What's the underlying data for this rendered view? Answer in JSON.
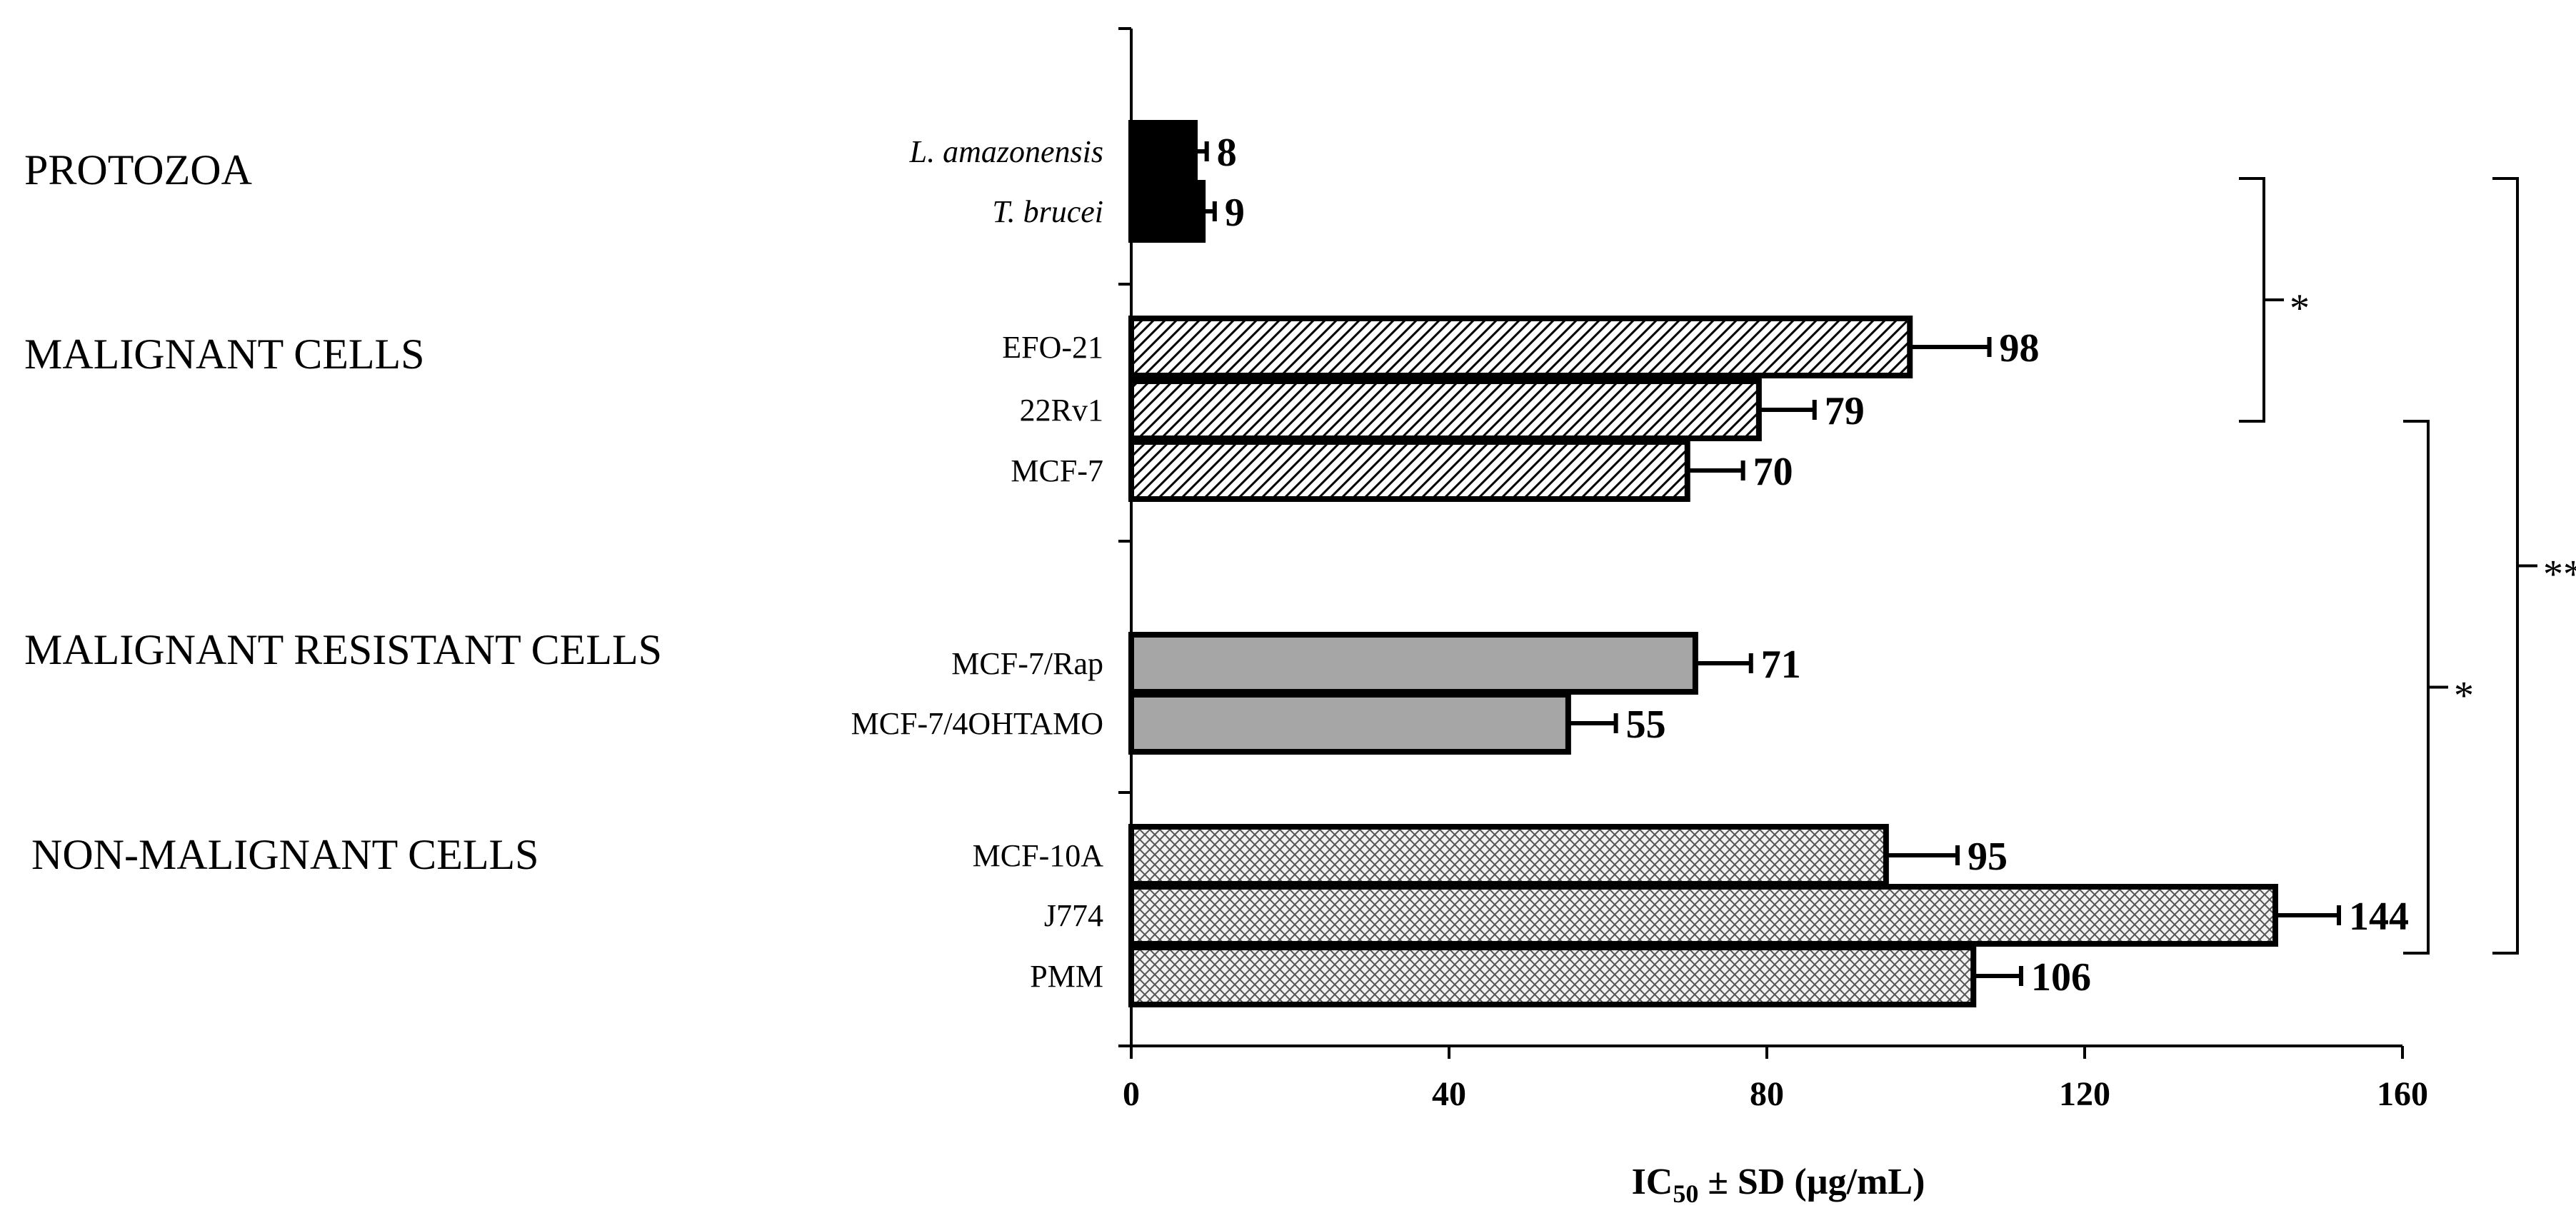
{
  "chart_data": {
    "type": "bar",
    "orientation": "horizontal",
    "title": "",
    "xlabel_main": "IC",
    "xlabel_sub": "50",
    "xlabel_rest": " ± SD (µg/mL)",
    "xlim": [
      0,
      160
    ],
    "xticks": [
      "0",
      "40",
      "80",
      "120",
      "160"
    ],
    "grid": false,
    "groups": [
      {
        "name": "PROTOZOA",
        "style": "solid",
        "items": [
          {
            "label": "L. amazonensis",
            "italic": true,
            "value": 8,
            "sd": 1.5,
            "value_label": "8"
          },
          {
            "label": "T. brucei",
            "italic": true,
            "value": 9,
            "sd": 1.5,
            "value_label": "9"
          }
        ]
      },
      {
        "name": "MALIGNANT CELLS",
        "style": "diagonal-hatch",
        "items": [
          {
            "label": "EFO-21",
            "italic": false,
            "value": 98,
            "sd": 10,
            "value_label": "98"
          },
          {
            "label": "22Rv1",
            "italic": false,
            "value": 79,
            "sd": 7,
            "value_label": "79"
          },
          {
            "label": "MCF-7",
            "italic": false,
            "value": 70,
            "sd": 7,
            "value_label": "70"
          }
        ]
      },
      {
        "name": "MALIGNANT RESISTANT CELLS",
        "style": "gray",
        "items": [
          {
            "label": "MCF-7/Rap",
            "italic": false,
            "value": 71,
            "sd": 7,
            "value_label": "71"
          },
          {
            "label": "MCF-7/4OHTAMO",
            "italic": false,
            "value": 55,
            "sd": 6,
            "value_label": "55"
          }
        ]
      },
      {
        "name": "NON-MALIGNANT CELLS",
        "style": "cross-hatch",
        "items": [
          {
            "label": "MCF-10A",
            "italic": false,
            "value": 95,
            "sd": 9,
            "value_label": "95"
          },
          {
            "label": "J774",
            "italic": false,
            "value": 144,
            "sd": 8,
            "value_label": "144"
          },
          {
            "label": "PMM",
            "italic": false,
            "value": 106,
            "sd": 6,
            "value_label": "106"
          }
        ]
      }
    ],
    "significance": [
      {
        "label": "*",
        "from": "T. brucei",
        "to": "22Rv1"
      },
      {
        "label": "*",
        "from": "22Rv1",
        "to": "J774"
      },
      {
        "label": "**",
        "from": "T. brucei",
        "to": "J774"
      }
    ],
    "colors": {
      "solid": "#000000",
      "gray": "#a6a6a6",
      "hatch_bg": "#ffffff",
      "hatch_line": "#000000",
      "crosshatch_bg": "#f2f2f2",
      "crosshatch_line": "#555555"
    }
  }
}
